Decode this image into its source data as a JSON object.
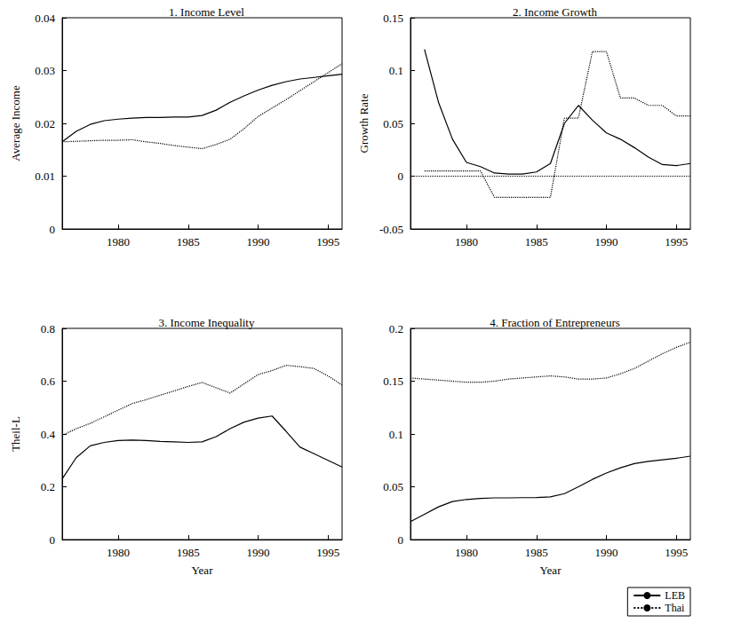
{
  "chart_data": [
    {
      "type": "line",
      "title": "1. Income Level",
      "ylabel": "Average Income",
      "x": [
        1976,
        1977,
        1978,
        1979,
        1980,
        1981,
        1982,
        1983,
        1984,
        1985,
        1986,
        1987,
        1988,
        1989,
        1990,
        1991,
        1992,
        1993,
        1994,
        1995,
        1996
      ],
      "series": [
        {
          "name": "LEB",
          "color": "#000000",
          "line_style": "solid",
          "values": [
            0.0165,
            0.0185,
            0.0198,
            0.0205,
            0.0208,
            0.021,
            0.0211,
            0.0211,
            0.0212,
            0.0212,
            0.0215,
            0.0225,
            0.024,
            0.0252,
            0.0263,
            0.0272,
            0.0279,
            0.0284,
            0.0287,
            0.029,
            0.0293
          ]
        },
        {
          "name": "Thai",
          "color": "#000000",
          "line_style": "dotted",
          "values": [
            0.0165,
            0.0166,
            0.0167,
            0.0168,
            0.0168,
            0.0169,
            0.0165,
            0.0162,
            0.0158,
            0.0155,
            0.0152,
            0.016,
            0.017,
            0.019,
            0.0213,
            0.0229,
            0.0245,
            0.0262,
            0.0279,
            0.0296,
            0.0313
          ]
        }
      ],
      "xlim": [
        1976,
        1996
      ],
      "xticks": [
        1980,
        1985,
        1990,
        1995
      ],
      "ylim": [
        0,
        0.04
      ],
      "yticks": [
        0,
        0.01,
        0.02,
        0.03,
        0.04
      ],
      "grid": false
    },
    {
      "type": "line",
      "title": "2. Income Growth",
      "ylabel": "Growth Rate",
      "x": [
        1977,
        1978,
        1979,
        1980,
        1981,
        1982,
        1983,
        1984,
        1985,
        1986,
        1987,
        1988,
        1989,
        1990,
        1991,
        1992,
        1993,
        1994,
        1995,
        1996
      ],
      "series": [
        {
          "name": "LEB",
          "color": "#000000",
          "line_style": "solid",
          "values": [
            0.12,
            0.07,
            0.035,
            0.013,
            0.009,
            0.003,
            0.002,
            0.002,
            0.004,
            0.012,
            0.05,
            0.067,
            0.053,
            0.041,
            0.035,
            0.027,
            0.018,
            0.011,
            0.01,
            0.012
          ]
        },
        {
          "name": "Thai",
          "color": "#000000",
          "line_style": "dotted",
          "values": [
            0.005,
            0.005,
            0.005,
            0.005,
            0.005,
            -0.02,
            -0.02,
            -0.02,
            -0.02,
            -0.02,
            0.055,
            0.055,
            0.118,
            0.118,
            0.074,
            0.074,
            0.067,
            0.067,
            0.057,
            0.057
          ]
        }
      ],
      "hline": 0,
      "xlim": [
        1976,
        1996
      ],
      "xticks": [
        1980,
        1985,
        1990,
        1995
      ],
      "ylim": [
        -0.05,
        0.15
      ],
      "yticks": [
        -0.05,
        0,
        0.05,
        0.1,
        0.15
      ],
      "grid": false
    },
    {
      "type": "line",
      "title": "3. Income Inequality",
      "ylabel": "Theil-L",
      "xlabel": "Year",
      "x": [
        1976,
        1977,
        1978,
        1979,
        1980,
        1981,
        1982,
        1983,
        1984,
        1985,
        1986,
        1987,
        1988,
        1989,
        1990,
        1991,
        1992,
        1993,
        1994,
        1995,
        1996
      ],
      "series": [
        {
          "name": "LEB",
          "color": "#000000",
          "line_style": "solid",
          "values": [
            0.23,
            0.31,
            0.355,
            0.368,
            0.375,
            0.377,
            0.375,
            0.372,
            0.37,
            0.368,
            0.37,
            0.39,
            0.42,
            0.445,
            0.46,
            0.468,
            0.41,
            0.35,
            0.325,
            0.3,
            0.275
          ]
        },
        {
          "name": "Thai",
          "color": "#000000",
          "line_style": "dotted",
          "values": [
            0.395,
            0.42,
            0.44,
            0.465,
            0.49,
            0.515,
            0.53,
            0.547,
            0.563,
            0.58,
            0.595,
            0.575,
            0.555,
            0.59,
            0.625,
            0.64,
            0.66,
            0.655,
            0.648,
            0.62,
            0.585
          ]
        }
      ],
      "xlim": [
        1976,
        1996
      ],
      "xticks": [
        1980,
        1985,
        1990,
        1995
      ],
      "ylim": [
        0,
        0.8
      ],
      "yticks": [
        0,
        0.2,
        0.4,
        0.6,
        0.8
      ],
      "grid": false
    },
    {
      "type": "line",
      "title": "4. Fraction of Entrepreneurs",
      "xlabel": "Year",
      "x": [
        1976,
        1977,
        1978,
        1979,
        1980,
        1981,
        1982,
        1983,
        1984,
        1985,
        1986,
        1987,
        1988,
        1989,
        1990,
        1991,
        1992,
        1993,
        1994,
        1995,
        1996
      ],
      "series": [
        {
          "name": "LEB",
          "color": "#000000",
          "line_style": "solid",
          "values": [
            0.017,
            0.024,
            0.031,
            0.036,
            0.038,
            0.039,
            0.0395,
            0.0395,
            0.0397,
            0.0398,
            0.0405,
            0.0435,
            0.05,
            0.057,
            0.063,
            0.068,
            0.072,
            0.074,
            0.0755,
            0.077,
            0.079
          ]
        },
        {
          "name": "Thai",
          "color": "#000000",
          "line_style": "dotted",
          "values": [
            0.153,
            0.152,
            0.151,
            0.15,
            0.149,
            0.149,
            0.15,
            0.152,
            0.153,
            0.154,
            0.155,
            0.154,
            0.152,
            0.152,
            0.153,
            0.157,
            0.162,
            0.169,
            0.176,
            0.182,
            0.187
          ]
        }
      ],
      "xlim": [
        1976,
        1996
      ],
      "xticks": [
        1980,
        1985,
        1990,
        1995
      ],
      "ylim": [
        0,
        0.2
      ],
      "yticks": [
        0,
        0.05,
        0.1,
        0.15,
        0.2
      ],
      "grid": false,
      "legend": "lower right"
    }
  ]
}
